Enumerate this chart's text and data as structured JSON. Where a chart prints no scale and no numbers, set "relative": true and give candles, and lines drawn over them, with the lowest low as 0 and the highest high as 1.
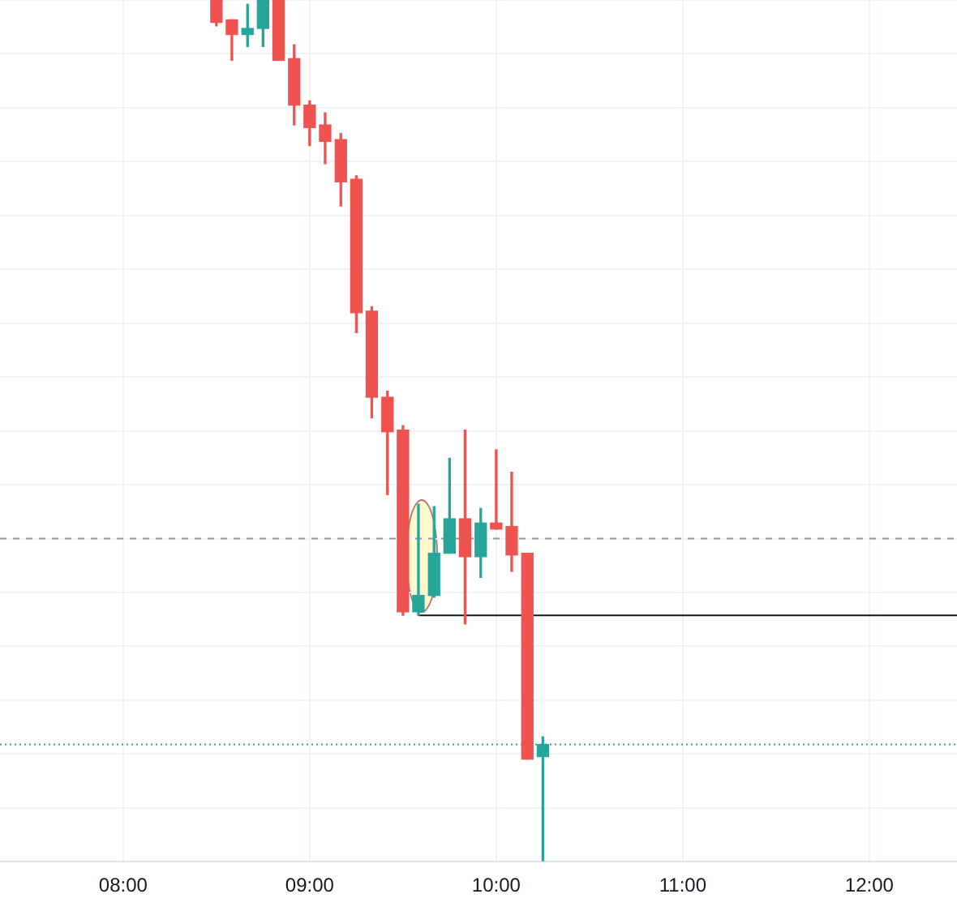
{
  "chart_data": {
    "type": "candlestick",
    "relative": true,
    "grid": true,
    "xlim": [
      7.34,
      12.47
    ],
    "xticks": [
      {
        "value": 8,
        "label": "08:00"
      },
      {
        "value": 9,
        "label": "09:00"
      },
      {
        "value": 10,
        "label": "10:00"
      },
      {
        "value": 11,
        "label": "11:00"
      },
      {
        "value": 12,
        "label": "12:00"
      }
    ],
    "ref_lines": [
      {
        "axis": "y",
        "value": 0.375,
        "color": "#9598a1",
        "line_style": "dashed"
      },
      {
        "axis": "y",
        "value": 0.136,
        "color": "#26a69a",
        "line_style": "dotted"
      }
    ],
    "series": [
      {
        "type": "candlestick",
        "x": [
          8.5,
          8.583,
          8.667,
          8.75,
          8.833,
          8.917,
          9,
          9.083,
          9.167,
          9.25,
          9.333,
          9.417,
          9.5,
          9.583,
          9.667,
          9.75,
          9.833,
          9.917,
          10,
          10.083,
          10.167,
          10.25
        ],
        "ohlc": [
          [
            1.0,
            1.0,
            0.97,
            0.974
          ],
          [
            0.977,
            0.977,
            0.93,
            0.96
          ],
          [
            0.96,
            0.995,
            0.946,
            0.967
          ],
          [
            0.967,
            1.0,
            0.946,
            1.0
          ],
          [
            1.0,
            1.0,
            0.93,
            0.93
          ],
          [
            0.932,
            0.948,
            0.855,
            0.878
          ],
          [
            0.878,
            0.883,
            0.831,
            0.852
          ],
          [
            0.855,
            0.869,
            0.81,
            0.836
          ],
          [
            0.838,
            0.845,
            0.761,
            0.789
          ],
          [
            0.792,
            0.796,
            0.614,
            0.637
          ],
          [
            0.639,
            0.644,
            0.515,
            0.539
          ],
          [
            0.539,
            0.546,
            0.426,
            0.499
          ],
          [
            0.501,
            0.506,
            0.286,
            0.29
          ],
          [
            0.29,
            0.415,
            0.286,
            0.309
          ],
          [
            0.309,
            0.412,
            0.307,
            0.358
          ],
          [
            0.358,
            0.468,
            0.358,
            0.398
          ],
          [
            0.398,
            0.501,
            0.276,
            0.354
          ],
          [
            0.354,
            0.41,
            0.33,
            0.393
          ],
          [
            0.393,
            0.478,
            0.386,
            0.386
          ],
          [
            0.389,
            0.452,
            0.337,
            0.356
          ],
          [
            0.358,
            0.358,
            0.119,
            0.119
          ],
          [
            0.122,
            0.145,
            0,
            0.136
          ]
        ],
        "colors": [
          "#ef5350",
          "#ef5350",
          "#26a69a",
          "#26a69a",
          "#ef5350",
          "#ef5350",
          "#ef5350",
          "#ef5350",
          "#ef5350",
          "#ef5350",
          "#ef5350",
          "#ef5350",
          "#ef5350",
          "#26a69a",
          "#26a69a",
          "#26a69a",
          "#ef5350",
          "#26a69a",
          "#ef5350",
          "#ef5350",
          "#ef5350",
          "#26a69a"
        ]
      },
      {
        "type": "line",
        "x": [
          9.583,
          12.47
        ],
        "values": [
          0.286,
          0.286
        ],
        "color": "#131722",
        "marker": "none"
      }
    ]
  }
}
